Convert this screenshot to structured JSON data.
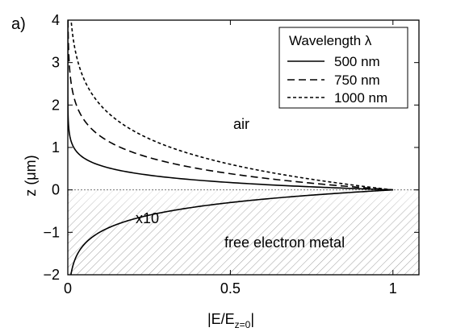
{
  "chart_data": {
    "type": "line",
    "panel_label": "a)",
    "xlabel": "|E/E",
    "xlabel_sub": "z=0",
    "xlabel_end": "|",
    "ylabel_parts": [
      "z (",
      "μ",
      "m)"
    ],
    "xlim": [
      0,
      1.08
    ],
    "ylim": [
      -2,
      4
    ],
    "xticks": [
      0,
      0.5,
      1
    ],
    "xtick_labels": [
      "0",
      "0.5",
      "1"
    ],
    "yticks": [
      -2,
      -1,
      0,
      1,
      2,
      3,
      4
    ],
    "ytick_labels": [
      "−2",
      "−1",
      "0",
      "1",
      "2",
      "3",
      "4"
    ],
    "legend": {
      "title": "Wavelength λ",
      "placement": "top-right",
      "entries": [
        "500 nm",
        "750 nm",
        "1000 nm"
      ]
    },
    "annotations": {
      "air": "air",
      "metal": "free electron metal",
      "scale": "x10"
    },
    "series": [
      {
        "name": "500 nm",
        "style": "solid",
        "decay_length_air": 0.25,
        "points": [
          [
            0.0,
            4.0
          ],
          [
            0.02,
            1.0
          ],
          [
            0.09,
            0.6
          ],
          [
            0.3,
            0.3
          ],
          [
            0.67,
            0.1
          ],
          [
            1.0,
            0.0
          ]
        ]
      },
      {
        "name": "750 nm",
        "style": "long-dash",
        "decay_length_air": 0.55,
        "points": [
          [
            0.008,
            4.0
          ],
          [
            0.03,
            2.0
          ],
          [
            0.16,
            1.0
          ],
          [
            0.4,
            0.5
          ],
          [
            0.82,
            0.1
          ],
          [
            1.0,
            0.0
          ]
        ]
      },
      {
        "name": "1000 nm",
        "style": "short-dash",
        "decay_length_air": 0.87,
        "points": [
          [
            0.025,
            4.0
          ],
          [
            0.1,
            2.0
          ],
          [
            0.32,
            1.0
          ],
          [
            0.56,
            0.5
          ],
          [
            0.89,
            0.1
          ],
          [
            1.0,
            0.0
          ]
        ]
      },
      {
        "name": "metal (x10)",
        "style": "solid",
        "decay_length_metal": 0.43,
        "points": [
          [
            1.0,
            0.0
          ],
          [
            0.79,
            -0.1
          ],
          [
            0.31,
            -0.5
          ],
          [
            0.1,
            -1.0
          ],
          [
            0.03,
            -1.5
          ],
          [
            0.01,
            -2.0
          ]
        ]
      }
    ],
    "grid": false
  }
}
